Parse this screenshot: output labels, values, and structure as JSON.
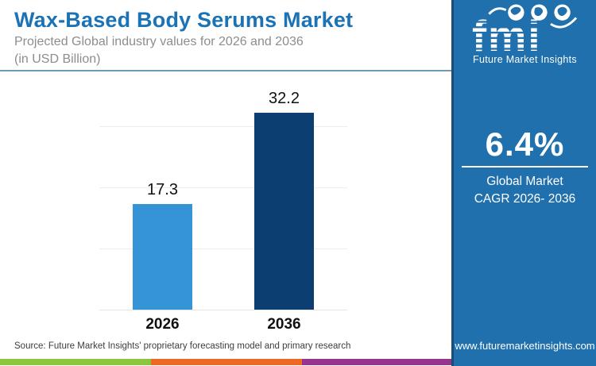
{
  "header": {
    "title": "Wax-Based Body Serums Market",
    "subtitle_line1": "Projected Global industry values for 2026 and 2036",
    "subtitle_line2": "(in USD Billion)"
  },
  "chart_data": {
    "type": "bar",
    "categories": [
      "2026",
      "2036"
    ],
    "values": [
      17.3,
      32.2
    ],
    "data_labels": [
      "17.3",
      "32.2"
    ],
    "title": "Wax-Based Body Serums Market",
    "subtitle": "Projected Global industry values for 2026 and 2036",
    "unit_note": "(in USD Billion)",
    "xlabel": "",
    "ylabel": "",
    "ylim": [
      0,
      35
    ],
    "gridline_values": [
      10,
      20,
      30
    ],
    "grid": true,
    "legend": false,
    "bar_colors": [
      "#3594d6",
      "#0d3e72"
    ]
  },
  "sidebar": {
    "bg_color": "#2070ad",
    "logo": {
      "brand": "fmi",
      "caption": "Future Market Insights"
    },
    "stat": {
      "value": "6.4%",
      "label_line1": "Global Market",
      "label_line2": "CAGR 2026- 2036"
    },
    "website": "www.futuremarketinsights.com"
  },
  "footer": {
    "source": "Source: Future Market Insights' proprietary forecasting model and primary research",
    "stripe_colors": [
      "#8cc63e",
      "#ee6723",
      "#96348e"
    ]
  }
}
